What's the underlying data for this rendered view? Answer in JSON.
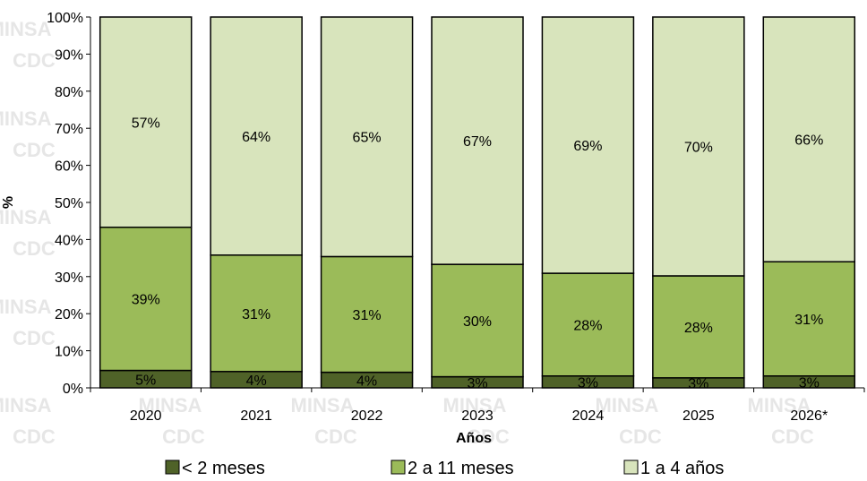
{
  "watermark": {
    "line1": "MINSA",
    "line2": "CDC"
  },
  "chart_data": {
    "type": "bar",
    "stacked": true,
    "percent_stacked": true,
    "categories": [
      "2020",
      "2021",
      "2022",
      "2023",
      "2024",
      "2025",
      "2026*"
    ],
    "series": [
      {
        "name": "< 2 meses",
        "values": [
          4.7,
          4.4,
          4.2,
          3.0,
          3.2,
          2.7,
          3.2
        ],
        "labels": [
          "5%",
          "4%",
          "4%",
          "3%",
          "3%",
          "3%",
          "3%"
        ],
        "color": "#4f6228"
      },
      {
        "name": "2 a 11 meses",
        "values": [
          38.6,
          31.4,
          31.2,
          30.3,
          27.7,
          27.5,
          30.8
        ],
        "labels": [
          "39%",
          "31%",
          "31%",
          "30%",
          "28%",
          "28%",
          "31%"
        ],
        "color": "#9bbb59"
      },
      {
        "name": "1 a 4 años",
        "values": [
          56.7,
          64.2,
          64.6,
          66.7,
          69.1,
          69.8,
          66.0
        ],
        "labels": [
          "57%",
          "64%",
          "65%",
          "67%",
          "69%",
          "70%",
          "66%"
        ],
        "color": "#d8e4bc"
      }
    ],
    "xlabel": "Años",
    "ylabel": "%",
    "ylim": [
      0,
      100
    ],
    "yticks": [
      "0%",
      "10%",
      "20%",
      "30%",
      "40%",
      "50%",
      "60%",
      "70%",
      "80%",
      "90%",
      "100%"
    ],
    "grid": false,
    "legend": "bottom"
  }
}
